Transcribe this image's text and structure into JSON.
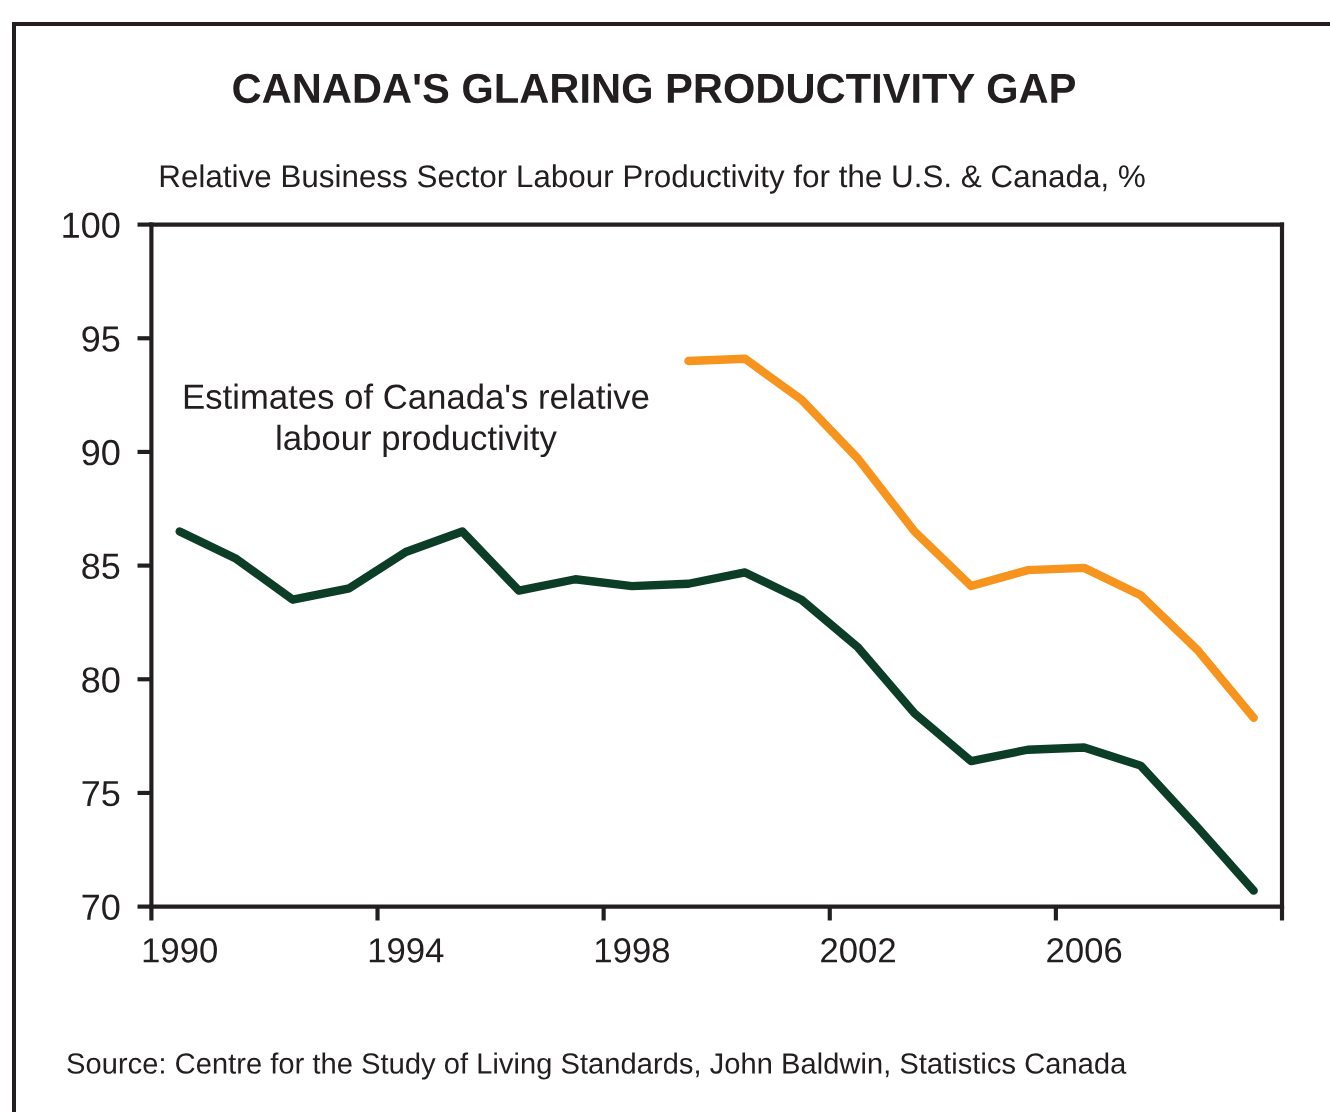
{
  "chart_data": {
    "type": "line",
    "title": "CANADA'S GLARING PRODUCTIVITY GAP",
    "subtitle": "Relative Business Sector Labour Productivity for the U.S. & Canada, %",
    "annotations": [
      "Estimates of Canada's relative\nlabour productivity",
      "Source: Centre for the Study of Living Standards, John Baldwin, Statistics Canada"
    ],
    "categories": [
      "1990",
      null,
      null,
      null,
      "1994",
      null,
      null,
      null,
      "1998",
      null,
      null,
      null,
      "2002",
      null,
      null,
      null,
      "2006",
      null,
      null,
      null
    ],
    "series": [
      {
        "color": "#0b3d27",
        "values": [
          86.5,
          85.3,
          83.5,
          84.0,
          85.6,
          86.5,
          83.9,
          84.4,
          84.1,
          84.2,
          84.7,
          83.5,
          81.4,
          78.5,
          76.4,
          76.9,
          77.0,
          76.2,
          73.5,
          70.7
        ]
      },
      {
        "color": "#f7941d",
        "values": [
          null,
          null,
          null,
          null,
          null,
          null,
          null,
          null,
          null,
          94.0,
          94.1,
          92.3,
          89.7,
          86.5,
          84.1,
          84.8,
          84.9,
          83.7,
          81.3,
          78.3
        ]
      }
    ],
    "ylim": [
      70,
      100
    ],
    "yticks": [
      70,
      75,
      80,
      85,
      90,
      95,
      100
    ],
    "line_style": "solid"
  }
}
